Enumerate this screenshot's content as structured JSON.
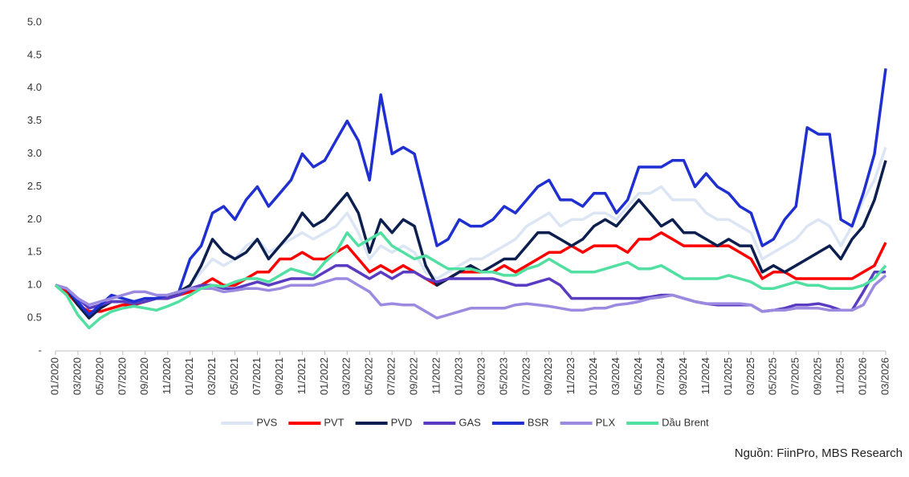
{
  "chart_data": {
    "type": "line",
    "categories": [
      "01/2020",
      null,
      "03/2020",
      null,
      "05/2020",
      null,
      "07/2020",
      null,
      "09/2020",
      null,
      "11/2020",
      null,
      "01/2021",
      null,
      "03/2021",
      null,
      "05/2021",
      null,
      "07/2021",
      null,
      "09/2021",
      null,
      "11/2021",
      null,
      "01/2022",
      null,
      "03/2022",
      null,
      "05/2022",
      null,
      "07/2022",
      null,
      "09/2022",
      null,
      "11/2022",
      null,
      "01/2023",
      null,
      "03/2023",
      null,
      "05/2023",
      null,
      "07/2023",
      null,
      "09/2023",
      null,
      "11/2023",
      null,
      "01/2024",
      null,
      "03/2024",
      null,
      "05/2024",
      null,
      "07/2024",
      null,
      "09/2024",
      null,
      "11/2024",
      null,
      "01/2025",
      null,
      "03/2025",
      null,
      "05/2025",
      null,
      "07/2025",
      null,
      "09/2025",
      null,
      "11/2025",
      null,
      "01/2026",
      null,
      "03/2026"
    ],
    "series": [
      {
        "name": "PVS",
        "color": "#dbe5f3",
        "values": [
          1.0,
          0.95,
          0.7,
          0.55,
          0.7,
          0.8,
          0.8,
          0.75,
          0.8,
          0.8,
          0.85,
          0.9,
          1.0,
          1.2,
          1.4,
          1.3,
          1.4,
          1.6,
          1.7,
          1.5,
          1.6,
          1.7,
          1.8,
          1.7,
          1.8,
          1.9,
          2.1,
          1.8,
          1.4,
          1.6,
          1.5,
          1.6,
          1.5,
          1.2,
          1.1,
          1.2,
          1.3,
          1.4,
          1.4,
          1.5,
          1.6,
          1.7,
          1.9,
          2.0,
          2.1,
          1.9,
          2.0,
          2.0,
          2.1,
          2.1,
          2.0,
          2.2,
          2.4,
          2.4,
          2.5,
          2.3,
          2.3,
          2.3,
          2.1,
          2.0,
          2.0,
          1.9,
          1.8,
          1.4,
          1.5,
          1.6,
          1.7,
          1.9,
          2.0,
          1.9,
          1.6,
          1.9,
          2.3,
          2.6,
          3.1
        ]
      },
      {
        "name": "PVT",
        "color": "#ff0000",
        "values": [
          1.0,
          0.9,
          0.7,
          0.6,
          0.6,
          0.65,
          0.7,
          0.7,
          0.75,
          0.8,
          0.8,
          0.85,
          0.9,
          1.0,
          1.1,
          1.0,
          1.0,
          1.1,
          1.2,
          1.2,
          1.4,
          1.4,
          1.5,
          1.4,
          1.4,
          1.5,
          1.6,
          1.4,
          1.2,
          1.3,
          1.2,
          1.3,
          1.2,
          1.1,
          1.0,
          1.1,
          1.2,
          1.2,
          1.2,
          1.2,
          1.3,
          1.2,
          1.3,
          1.4,
          1.5,
          1.5,
          1.6,
          1.5,
          1.6,
          1.6,
          1.6,
          1.5,
          1.7,
          1.7,
          1.8,
          1.7,
          1.6,
          1.6,
          1.6,
          1.6,
          1.6,
          1.5,
          1.4,
          1.1,
          1.2,
          1.2,
          1.1,
          1.1,
          1.1,
          1.1,
          1.1,
          1.1,
          1.2,
          1.3,
          1.65
        ]
      },
      {
        "name": "PVD",
        "color": "#0d1f4f",
        "values": [
          1.0,
          0.95,
          0.7,
          0.5,
          0.65,
          0.75,
          0.75,
          0.72,
          0.75,
          0.8,
          0.8,
          0.9,
          1.0,
          1.3,
          1.7,
          1.5,
          1.4,
          1.5,
          1.7,
          1.4,
          1.6,
          1.8,
          2.1,
          1.9,
          2.0,
          2.2,
          2.4,
          2.1,
          1.5,
          2.0,
          1.8,
          2.0,
          1.9,
          1.3,
          1.0,
          1.1,
          1.2,
          1.3,
          1.2,
          1.3,
          1.4,
          1.4,
          1.6,
          1.8,
          1.8,
          1.7,
          1.6,
          1.7,
          1.9,
          2.0,
          1.9,
          2.1,
          2.3,
          2.1,
          1.9,
          2.0,
          1.8,
          1.8,
          1.7,
          1.6,
          1.7,
          1.6,
          1.6,
          1.2,
          1.3,
          1.2,
          1.3,
          1.4,
          1.5,
          1.6,
          1.4,
          1.7,
          1.9,
          2.3,
          2.9
        ]
      },
      {
        "name": "GAS",
        "color": "#5a3cc2",
        "values": [
          1.0,
          0.95,
          0.8,
          0.65,
          0.7,
          0.75,
          0.75,
          0.72,
          0.75,
          0.8,
          0.8,
          0.85,
          0.95,
          1.0,
          1.0,
          0.95,
          0.95,
          1.0,
          1.05,
          1.0,
          1.05,
          1.1,
          1.1,
          1.1,
          1.2,
          1.3,
          1.3,
          1.2,
          1.1,
          1.2,
          1.1,
          1.2,
          1.2,
          1.1,
          1.05,
          1.1,
          1.1,
          1.1,
          1.1,
          1.1,
          1.05,
          1.0,
          1.0,
          1.05,
          1.1,
          1.0,
          0.8,
          0.8,
          0.8,
          0.8,
          0.8,
          0.8,
          0.8,
          0.82,
          0.85,
          0.85,
          0.8,
          0.75,
          0.72,
          0.7,
          0.7,
          0.7,
          0.7,
          0.6,
          0.62,
          0.65,
          0.7,
          0.7,
          0.72,
          0.68,
          0.62,
          0.62,
          0.9,
          1.2,
          1.2
        ]
      },
      {
        "name": "BSR",
        "color": "#1f2fd0",
        "values": [
          1.0,
          0.95,
          0.75,
          0.55,
          0.7,
          0.85,
          0.8,
          0.75,
          0.8,
          0.8,
          0.85,
          0.9,
          1.4,
          1.6,
          2.1,
          2.2,
          2.0,
          2.3,
          2.5,
          2.2,
          2.4,
          2.6,
          3.0,
          2.8,
          2.9,
          3.2,
          3.5,
          3.2,
          2.6,
          3.9,
          3.0,
          3.1,
          3.0,
          2.3,
          1.6,
          1.7,
          2.0,
          1.9,
          1.9,
          2.0,
          2.2,
          2.1,
          2.3,
          2.5,
          2.6,
          2.3,
          2.3,
          2.2,
          2.4,
          2.4,
          2.1,
          2.3,
          2.8,
          2.8,
          2.8,
          2.9,
          2.9,
          2.5,
          2.7,
          2.5,
          2.4,
          2.2,
          2.1,
          1.6,
          1.7,
          2.0,
          2.2,
          3.4,
          3.3,
          3.3,
          2.0,
          1.9,
          2.4,
          3.0,
          4.3
        ]
      },
      {
        "name": "PLX",
        "color": "#9c8ae0",
        "values": [
          1.0,
          0.95,
          0.8,
          0.7,
          0.75,
          0.8,
          0.85,
          0.9,
          0.9,
          0.85,
          0.85,
          0.9,
          0.95,
          0.95,
          0.95,
          0.9,
          0.92,
          0.95,
          0.95,
          0.92,
          0.95,
          1.0,
          1.0,
          1.0,
          1.05,
          1.1,
          1.1,
          1.0,
          0.9,
          0.7,
          0.72,
          0.7,
          0.7,
          0.6,
          0.5,
          0.55,
          0.6,
          0.65,
          0.65,
          0.65,
          0.65,
          0.7,
          0.72,
          0.7,
          0.68,
          0.65,
          0.62,
          0.62,
          0.65,
          0.65,
          0.7,
          0.72,
          0.75,
          0.8,
          0.82,
          0.85,
          0.8,
          0.75,
          0.72,
          0.72,
          0.72,
          0.72,
          0.7,
          0.6,
          0.62,
          0.62,
          0.65,
          0.65,
          0.65,
          0.62,
          0.62,
          0.62,
          0.7,
          1.0,
          1.15
        ]
      },
      {
        "name": "Dầu Brent",
        "color": "#52e0a2",
        "values": [
          1.0,
          0.85,
          0.55,
          0.35,
          0.5,
          0.6,
          0.65,
          0.68,
          0.65,
          0.62,
          0.68,
          0.75,
          0.85,
          0.95,
          1.0,
          0.98,
          1.05,
          1.1,
          1.1,
          1.05,
          1.15,
          1.25,
          1.2,
          1.15,
          1.35,
          1.5,
          1.8,
          1.6,
          1.7,
          1.8,
          1.6,
          1.5,
          1.4,
          1.45,
          1.35,
          1.25,
          1.25,
          1.25,
          1.2,
          1.2,
          1.15,
          1.15,
          1.25,
          1.3,
          1.4,
          1.3,
          1.2,
          1.2,
          1.2,
          1.25,
          1.3,
          1.35,
          1.25,
          1.25,
          1.3,
          1.2,
          1.1,
          1.1,
          1.1,
          1.1,
          1.15,
          1.1,
          1.05,
          0.95,
          0.95,
          1.0,
          1.05,
          1.0,
          1.0,
          0.95,
          0.95,
          0.95,
          1.0,
          1.1,
          1.3
        ]
      }
    ],
    "ylim": [
      0,
      5
    ],
    "yticks": [
      {
        "value": 0,
        "label": "-"
      },
      0.5,
      {
        "value": 1,
        "label": "1.0"
      },
      1.5,
      {
        "value": 2,
        "label": "2.0"
      },
      2.5,
      {
        "value": 3,
        "label": "3.0"
      },
      3.5,
      {
        "value": 4,
        "label": "4.0"
      },
      4.5,
      {
        "value": 5,
        "label": "5.0"
      }
    ],
    "grid": false,
    "legend": "bottom",
    "source": "Nguồn: FiinPro, MBS Research"
  }
}
